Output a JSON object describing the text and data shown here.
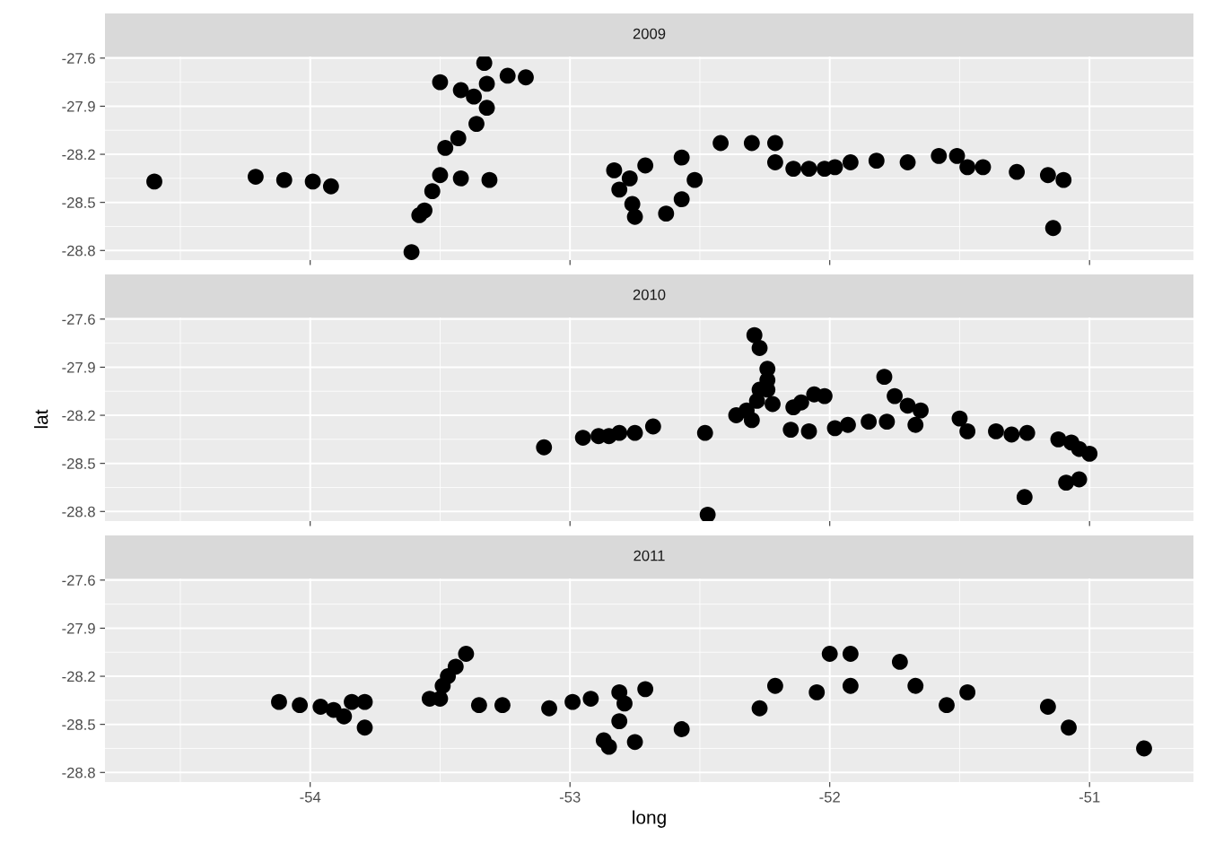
{
  "chart_data": [
    {
      "type": "scatter",
      "title": "2009",
      "tick_labels": "y",
      "grid": true,
      "marker": "circle",
      "xlim": [
        -54.79,
        -50.6
      ],
      "ylim": [
        -28.86,
        -27.59
      ],
      "xticks": [
        -54,
        -53,
        -52,
        -51
      ],
      "yticks": [
        -27.6,
        -27.9,
        -28.2,
        -28.5,
        -28.8
      ],
      "series": [
        {
          "color": "#000000",
          "x": [
            -54.6,
            -54.21,
            -54.1,
            -53.99,
            -53.92,
            -53.61,
            -53.58,
            -53.56,
            -53.53,
            -53.5,
            -53.5,
            -53.48,
            -53.43,
            -53.42,
            -53.42,
            -53.37,
            -53.36,
            -53.33,
            -53.32,
            -53.32,
            -53.31,
            -53.24,
            -53.17,
            -52.83,
            -52.81,
            -52.77,
            -52.76,
            -52.75,
            -52.71,
            -52.63,
            -52.57,
            -52.57,
            -52.52,
            -52.42,
            -52.3,
            -52.21,
            -52.21,
            -52.14,
            -52.08,
            -52.02,
            -51.98,
            -51.92,
            -51.82,
            -51.7,
            -51.58,
            -51.51,
            -51.47,
            -51.41,
            -51.28,
            -51.16,
            -51.14,
            -51.1
          ],
          "values": [
            -28.37,
            -28.34,
            -28.36,
            -28.37,
            -28.4,
            -28.81,
            -28.58,
            -28.55,
            -28.43,
            -28.33,
            -27.75,
            -28.16,
            -28.1,
            -27.8,
            -28.35,
            -27.84,
            -28.01,
            -27.63,
            -27.76,
            -27.91,
            -28.36,
            -27.71,
            -27.72,
            -28.3,
            -28.42,
            -28.35,
            -28.51,
            -28.59,
            -28.27,
            -28.57,
            -28.22,
            -28.48,
            -28.36,
            -28.13,
            -28.13,
            -28.13,
            -28.25,
            -28.29,
            -28.29,
            -28.29,
            -28.28,
            -28.25,
            -28.24,
            -28.25,
            -28.21,
            -28.21,
            -28.28,
            -28.28,
            -28.31,
            -28.33,
            -28.66,
            -28.36
          ]
        }
      ]
    },
    {
      "type": "scatter",
      "title": "2010",
      "ylabel": "lat",
      "tick_labels": "y",
      "grid": true,
      "marker": "circle",
      "xlim": [
        -54.79,
        -50.6
      ],
      "ylim": [
        -28.86,
        -27.59
      ],
      "xticks": [
        -54,
        -53,
        -52,
        -51
      ],
      "yticks": [
        -27.6,
        -27.9,
        -28.2,
        -28.5,
        -28.8
      ],
      "series": [
        {
          "color": "#000000",
          "x": [
            -53.1,
            -52.95,
            -52.89,
            -52.85,
            -52.81,
            -52.75,
            -52.68,
            -52.48,
            -52.47,
            -52.36,
            -52.32,
            -52.3,
            -52.29,
            -52.27,
            -52.28,
            -52.27,
            -52.24,
            -52.24,
            -52.24,
            -52.22,
            -52.15,
            -52.14,
            -52.11,
            -52.08,
            -52.06,
            -52.02,
            -51.98,
            -51.93,
            -51.85,
            -51.79,
            -51.78,
            -51.75,
            -51.7,
            -51.67,
            -51.65,
            -51.5,
            -51.47,
            -51.36,
            -51.3,
            -51.24,
            -51.25,
            -51.12,
            -51.09,
            -51.07,
            -51.04,
            -51.04,
            -51.0
          ],
          "values": [
            -28.4,
            -28.34,
            -28.33,
            -28.33,
            -28.31,
            -28.31,
            -28.27,
            -28.31,
            -28.82,
            -28.2,
            -28.17,
            -28.23,
            -27.7,
            -27.78,
            -28.11,
            -28.04,
            -27.91,
            -27.98,
            -28.04,
            -28.13,
            -28.29,
            -28.15,
            -28.12,
            -28.3,
            -28.07,
            -28.08,
            -28.28,
            -28.26,
            -28.24,
            -27.96,
            -28.24,
            -28.08,
            -28.14,
            -28.26,
            -28.17,
            -28.22,
            -28.3,
            -28.3,
            -28.32,
            -28.31,
            -28.71,
            -28.35,
            -28.62,
            -28.37,
            -28.6,
            -28.41,
            -28.44
          ]
        }
      ]
    },
    {
      "type": "scatter",
      "title": "2011",
      "xlabel": "long",
      "grid": true,
      "marker": "circle",
      "xlim": [
        -54.79,
        -50.6
      ],
      "ylim": [
        -28.86,
        -27.59
      ],
      "xticks": [
        -54,
        -53,
        -52,
        -51
      ],
      "yticks": [
        -27.6,
        -27.9,
        -28.2,
        -28.5,
        -28.8
      ],
      "series": [
        {
          "color": "#000000",
          "x": [
            -54.12,
            -54.04,
            -53.96,
            -53.91,
            -53.87,
            -53.84,
            -53.79,
            -53.79,
            -53.54,
            -53.5,
            -53.49,
            -53.47,
            -53.44,
            -53.4,
            -53.35,
            -53.26,
            -53.08,
            -52.99,
            -52.92,
            -52.87,
            -52.85,
            -52.81,
            -52.81,
            -52.79,
            -52.75,
            -52.71,
            -52.57,
            -52.27,
            -52.21,
            -52.05,
            -52.0,
            -51.92,
            -51.92,
            -51.73,
            -51.67,
            -51.55,
            -51.47,
            -51.16,
            -51.08,
            -50.79
          ],
          "values": [
            -28.36,
            -28.38,
            -28.39,
            -28.41,
            -28.45,
            -28.36,
            -28.52,
            -28.36,
            -28.34,
            -28.34,
            -28.26,
            -28.2,
            -28.14,
            -28.06,
            -28.38,
            -28.38,
            -28.4,
            -28.36,
            -28.34,
            -28.6,
            -28.64,
            -28.3,
            -28.48,
            -28.37,
            -28.61,
            -28.28,
            -28.53,
            -28.4,
            -28.26,
            -28.3,
            -28.06,
            -28.26,
            -28.06,
            -28.11,
            -28.26,
            -28.38,
            -28.3,
            -28.39,
            -28.52,
            -28.65
          ]
        }
      ]
    }
  ]
}
